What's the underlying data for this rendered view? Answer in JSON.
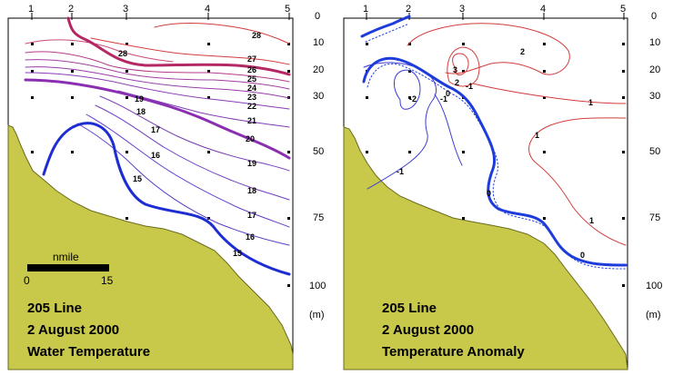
{
  "chart_data": [
    {
      "type": "contour",
      "panel": "water-temperature",
      "title_lines": [
        "205 Line",
        "2 August 2000",
        "Water Temperature"
      ],
      "stations": [
        "1",
        "2",
        "3",
        "4",
        "5"
      ],
      "depth_ticks": [
        "0",
        "10",
        "20",
        "30",
        "50",
        "75",
        "100"
      ],
      "depth_unit": "(m)",
      "scale_bar": {
        "label": "nmile",
        "start": "0",
        "end": "15"
      },
      "contour_labels": [
        "28",
        "27",
        "26",
        "25",
        "24",
        "23",
        "22",
        "21",
        "20",
        "19",
        "18",
        "17",
        "16",
        "15"
      ],
      "colors": {
        "warm": "#d23c3c",
        "mid": "#a03cb4",
        "cool": "#3c3cd2",
        "land": "#c8c84b"
      }
    },
    {
      "type": "contour",
      "panel": "temperature-anomaly",
      "title_lines": [
        "205 Line",
        "2 August 2000",
        "Temperature Anomaly"
      ],
      "stations": [
        "1",
        "2",
        "3",
        "4",
        "5"
      ],
      "depth_ticks": [
        "0",
        "10",
        "20",
        "30",
        "50",
        "75",
        "100"
      ],
      "depth_unit": "(m)",
      "contour_labels": [
        "3",
        "2",
        "2",
        "1",
        "1",
        "1",
        "0",
        "0",
        "0",
        "-1",
        "-1",
        "-1",
        "-2"
      ],
      "colors": {
        "positive": "#d23c3c",
        "zero": "#1e3cdc",
        "negative": "#3c3cd2",
        "land": "#c8c84b"
      }
    }
  ]
}
